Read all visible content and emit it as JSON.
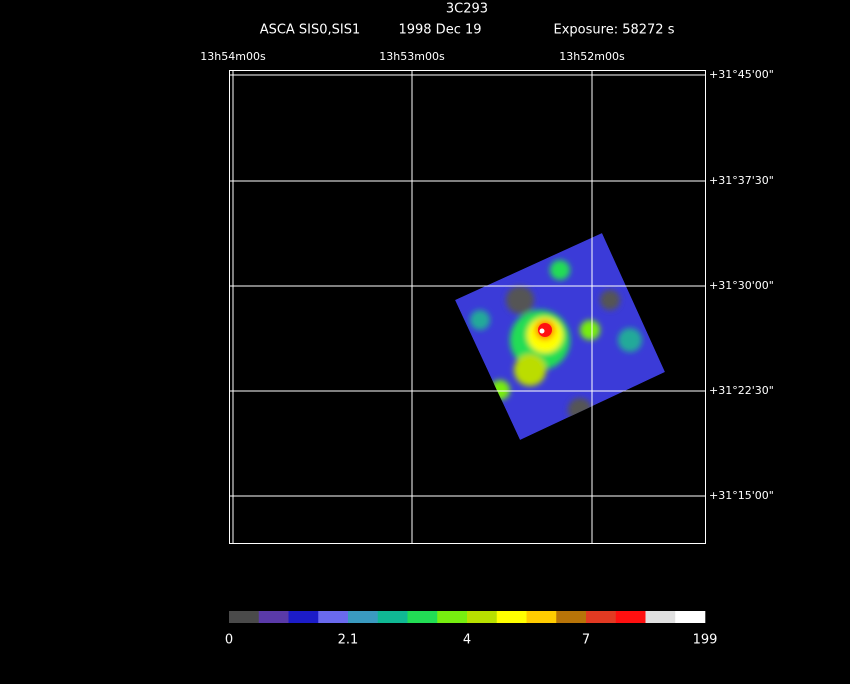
{
  "header": {
    "title": "3C293",
    "instrument": "ASCA SIS0,SIS1",
    "date": "1998 Dec 19",
    "exposure": "Exposure: 58272 s"
  },
  "ra_labels": [
    "13h54m00s",
    "13h53m00s",
    "13h52m00s"
  ],
  "dec_labels": [
    "+31°45'00\"",
    "+31°37'30\"",
    "+31°30'00\"",
    "+31°22'30\"",
    "+31°15'00\""
  ],
  "colorbar": {
    "colors": [
      "#4a4a4a",
      "#5a3aa8",
      "#1c1cc8",
      "#6a6aee",
      "#3a9ac0",
      "#10b894",
      "#22dd55",
      "#77ee10",
      "#b8e000",
      "#ffff00",
      "#ffcc00",
      "#b87408",
      "#e23a22",
      "#ff1010",
      "#e0e0e0",
      "#ffffff"
    ],
    "labels": [
      0,
      2.1,
      4,
      7,
      199
    ]
  }
}
